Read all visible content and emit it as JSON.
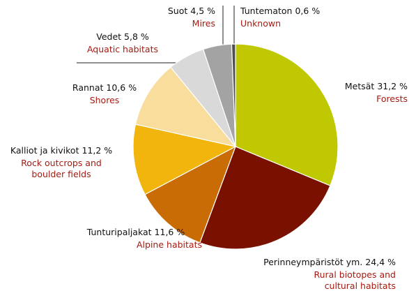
{
  "chart_data": {
    "type": "pie",
    "categories": [
      "Metsät",
      "Perinneympäristöt ym.",
      "Tunturipaljakat",
      "Kalliot ja kivikot",
      "Rannat",
      "Vedet",
      "Suot",
      "Tuntematon"
    ],
    "english": [
      [
        "Forests"
      ],
      [
        "Rural biotopes and",
        "cultural habitats"
      ],
      [
        "Alpine habitats"
      ],
      [
        "Rock outcrops and",
        "boulder fields"
      ],
      [
        "Shores"
      ],
      [
        "Aquatic habitats"
      ],
      [
        "Mires"
      ],
      [
        "Unknown"
      ]
    ],
    "values": [
      31.2,
      24.4,
      11.6,
      11.2,
      10.6,
      5.8,
      4.5,
      0.6
    ],
    "value_labels": [
      "31,2 %",
      "24,4 %",
      "11,6 %",
      "11,2 %",
      "10,6 %",
      "5,8 %",
      "4,5 %",
      "0,6 %"
    ],
    "colors": [
      "#bfc800",
      "#7a1100",
      "#c96c05",
      "#f1b50d",
      "#f9dd9c",
      "#d9d9d9",
      "#a3a3a3",
      "#4d4d4d"
    ]
  }
}
